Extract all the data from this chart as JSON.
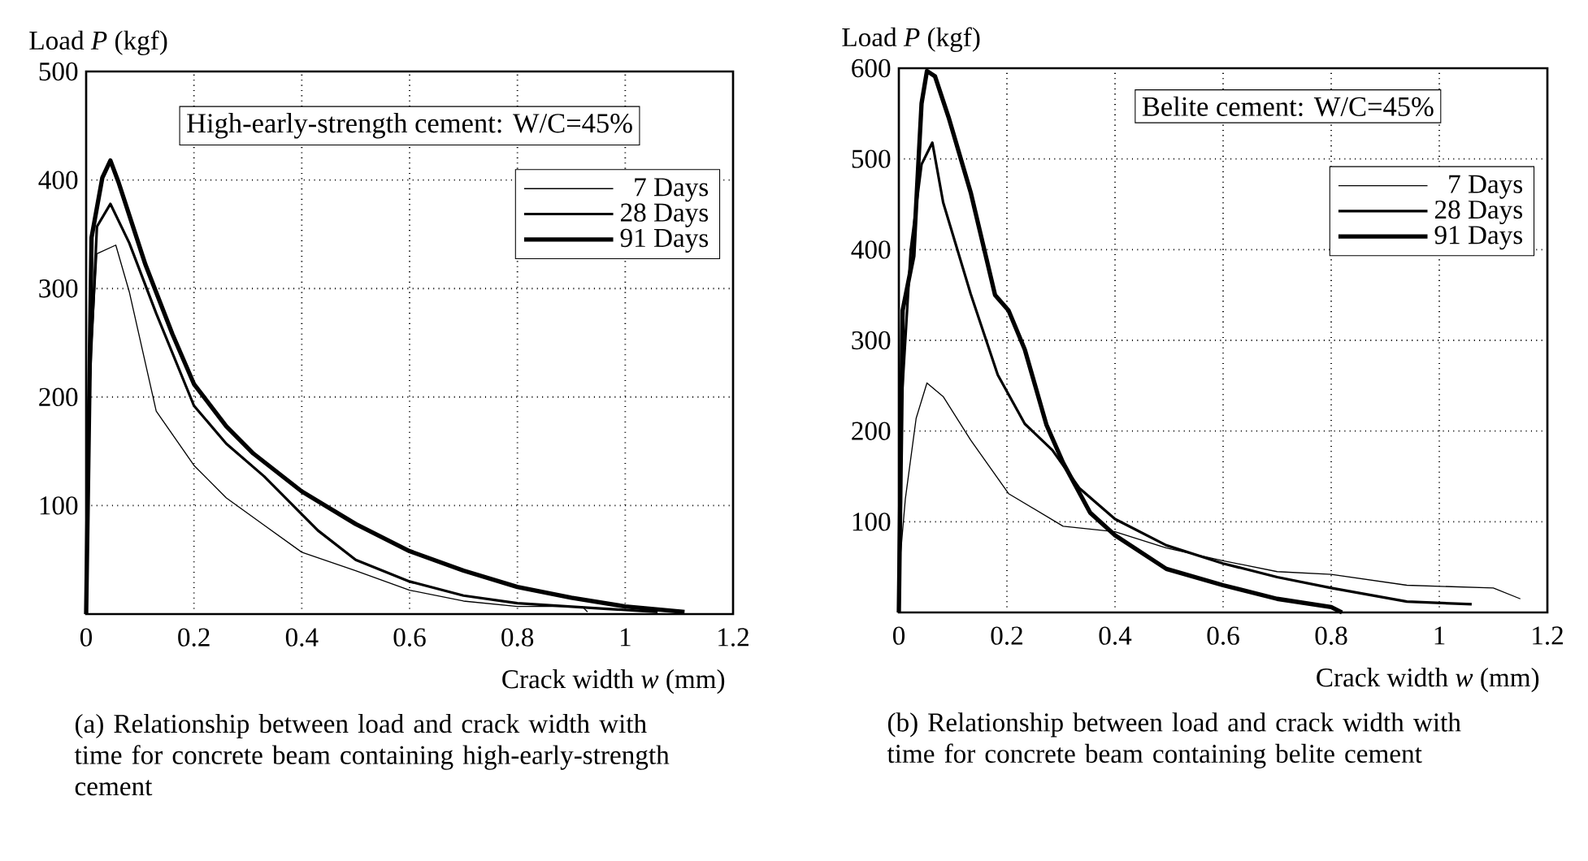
{
  "chart_data": [
    {
      "type": "line",
      "xlabel": "Crack width *w* (mm)",
      "ylabel": "Load *P* (kgf)",
      "annotations": [
        "High-early-strength cement: W/C=45%",
        "(a) Relationship between load and crack width with time for concrete beam containing high-early-strength cement"
      ],
      "xlim": [
        0,
        1.2
      ],
      "ylim": [
        0,
        500
      ],
      "xticks": [
        0,
        0.2,
        0.4,
        0.6,
        0.8,
        1,
        1.2
      ],
      "yticks": [
        100,
        200,
        300,
        400,
        500
      ],
      "grid": true,
      "legend": "top right",
      "marker": "none",
      "line_style": "solid",
      "series": [
        {
          "name": "7 Days",
          "color": "#000000",
          "x": [
            0,
            0.005,
            0.02,
            0.055,
            0.08,
            0.13,
            0.2,
            0.26,
            0.33,
            0.4,
            0.5,
            0.6,
            0.7,
            0.8,
            0.92,
            0.93
          ],
          "values": [
            0,
            200,
            332,
            340,
            297,
            187,
            137,
            107,
            82,
            57,
            40,
            22,
            12,
            7,
            7,
            2
          ]
        },
        {
          "name": "28 Days",
          "color": "#000000",
          "x": [
            0,
            0.005,
            0.02,
            0.045,
            0.08,
            0.13,
            0.2,
            0.26,
            0.33,
            0.4,
            0.43,
            0.5,
            0.6,
            0.7,
            0.8,
            0.96,
            1.06
          ],
          "values": [
            0,
            197,
            357,
            378,
            342,
            277,
            192,
            157,
            127,
            92,
            77,
            50,
            30,
            17,
            10,
            5,
            2
          ]
        },
        {
          "name": "91 Days",
          "color": "#000000",
          "x": [
            0,
            0.005,
            0.01,
            0.03,
            0.045,
            0.06,
            0.11,
            0.16,
            0.2,
            0.26,
            0.31,
            0.4,
            0.5,
            0.6,
            0.7,
            0.8,
            0.9,
            1.0,
            1.11
          ],
          "values": [
            0,
            172,
            347,
            402,
            418,
            398,
            322,
            258,
            212,
            173,
            148,
            113,
            83,
            58,
            40,
            25,
            15,
            7,
            2
          ]
        }
      ]
    },
    {
      "type": "line",
      "xlabel": "Crack width *w* (mm)",
      "ylabel": "Load *P* (kgf)",
      "annotations": [
        "Belite cement: W/C=45%",
        "(b) Relationship between load and crack width with time for concrete beam containing belite cement"
      ],
      "xlim": [
        0,
        1.2
      ],
      "ylim": [
        0,
        600
      ],
      "xticks": [
        0,
        0.2,
        0.4,
        0.6,
        0.8,
        1,
        1.2
      ],
      "yticks": [
        100,
        200,
        300,
        400,
        500,
        600
      ],
      "grid": true,
      "legend": "top right",
      "marker": "none",
      "line_style": "solid",
      "series": [
        {
          "name": "7 Days",
          "color": "#000000",
          "x": [
            0,
            0.012,
            0.032,
            0.052,
            0.082,
            0.133,
            0.203,
            0.304,
            0.4,
            0.495,
            0.6,
            0.7,
            0.8,
            0.94,
            1.1,
            1.15
          ],
          "values": [
            42,
            125,
            214,
            253,
            238,
            190,
            131,
            95,
            89,
            71,
            57,
            45,
            42,
            30,
            27,
            15
          ]
        },
        {
          "name": "28 Days",
          "color": "#000000",
          "x": [
            0,
            0.002,
            0.022,
            0.042,
            0.062,
            0.082,
            0.133,
            0.183,
            0.233,
            0.284,
            0.334,
            0.4,
            0.495,
            0.6,
            0.7,
            0.8,
            0.94,
            1.06
          ],
          "values": [
            0,
            202,
            400,
            494,
            518,
            452,
            351,
            262,
            208,
            179,
            137,
            103,
            74,
            54,
            39,
            27,
            12,
            9
          ]
        },
        {
          "name": "91 Days",
          "color": "#000000",
          "x": [
            0,
            0.007,
            0.027,
            0.042,
            0.052,
            0.067,
            0.092,
            0.133,
            0.178,
            0.203,
            0.233,
            0.273,
            0.304,
            0.354,
            0.4,
            0.495,
            0.6,
            0.7,
            0.8,
            0.82
          ],
          "values": [
            0,
            333,
            393,
            561,
            597,
            591,
            546,
            463,
            350,
            333,
            290,
            207,
            165,
            110,
            85,
            48,
            30,
            15,
            6,
            0
          ]
        }
      ]
    }
  ]
}
